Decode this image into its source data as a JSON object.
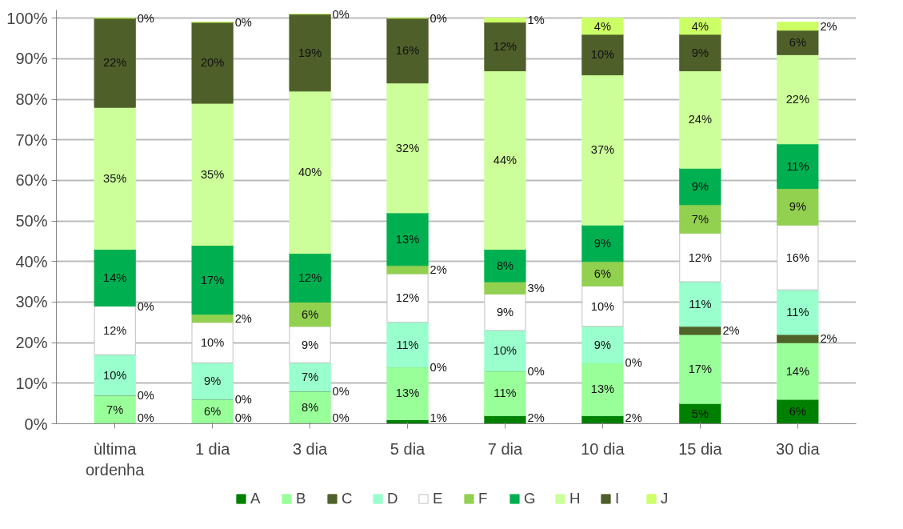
{
  "chart_data": {
    "type": "bar",
    "stacked": true,
    "categories": [
      "ùltima\nordenha",
      "1 dia",
      "3 dia",
      "5 dia",
      "7 dia",
      "10 dia",
      "15 dia",
      "30 dia"
    ],
    "series": [
      {
        "name": "A",
        "color": "#008000",
        "values": [
          0,
          0,
          0,
          1,
          2,
          2,
          5,
          6
        ],
        "value_labels": [
          "0%",
          "0%",
          "0%",
          "1%",
          "2%",
          "2%",
          "5%",
          "6%"
        ]
      },
      {
        "name": "B",
        "color": "#99ff99",
        "values": [
          7,
          6,
          8,
          13,
          11,
          13,
          17,
          14
        ],
        "value_labels": [
          "7%",
          "6%",
          "8%",
          "13%",
          "11%",
          "13%",
          "17%",
          "14%"
        ]
      },
      {
        "name": "C",
        "color": "#4f6228",
        "values": [
          0,
          0,
          0,
          0,
          0,
          0,
          2,
          2
        ],
        "value_labels": [
          "0%",
          "0%",
          "0%",
          "0%",
          "0%",
          "0%",
          "2%",
          "2%"
        ]
      },
      {
        "name": "D",
        "color": "#99ffcc",
        "values": [
          10,
          9,
          7,
          11,
          10,
          9,
          11,
          11
        ],
        "value_labels": [
          "10%",
          "9%",
          "7%",
          "11%",
          "10%",
          "9%",
          "11%",
          "11%"
        ]
      },
      {
        "name": "E",
        "color": "#ffffff",
        "values": [
          12,
          10,
          9,
          12,
          9,
          10,
          12,
          16
        ],
        "value_labels": [
          "12%",
          "10%",
          "9%",
          "12%",
          "9%",
          "10%",
          "12%",
          "16%"
        ]
      },
      {
        "name": "F",
        "color": "#92d050",
        "values": [
          0,
          2,
          6,
          2,
          3,
          6,
          7,
          9
        ],
        "value_labels": [
          "0%",
          "2%",
          "6%",
          "2%",
          "3%",
          "6%",
          "7%",
          "9%"
        ]
      },
      {
        "name": "G",
        "color": "#00b050",
        "values": [
          14,
          17,
          12,
          13,
          8,
          9,
          9,
          11
        ],
        "value_labels": [
          "14%",
          "17%",
          "12%",
          "13%",
          "8%",
          "9%",
          "9%",
          "11%"
        ]
      },
      {
        "name": "H",
        "color": "#ccff99",
        "values": [
          35,
          35,
          40,
          32,
          44,
          37,
          24,
          22
        ],
        "value_labels": [
          "35%",
          "35%",
          "40%",
          "32%",
          "44%",
          "37%",
          "24%",
          "22%"
        ]
      },
      {
        "name": "I",
        "color": "#4e5f2a",
        "values": [
          22,
          20,
          19,
          16,
          12,
          10,
          9,
          6
        ],
        "value_labels": [
          "22%",
          "20%",
          "19%",
          "16%",
          "12%",
          "10%",
          "9%",
          "6%"
        ]
      },
      {
        "name": "J",
        "color": "#ccff66",
        "values": [
          0,
          0,
          0,
          0,
          1,
          4,
          4,
          2
        ],
        "value_labels": [
          "0%",
          "0%",
          "0%",
          "0%",
          "1%",
          "4%",
          "4%",
          "2%"
        ]
      }
    ],
    "ylim": [
      0,
      102
    ],
    "yticks": [
      {
        "value": 0,
        "label": "0%"
      },
      {
        "value": 10,
        "label": "10%"
      },
      {
        "value": 20,
        "label": "20%"
      },
      {
        "value": 30,
        "label": "30%"
      },
      {
        "value": 40,
        "label": "40%"
      },
      {
        "value": 50,
        "label": "50%"
      },
      {
        "value": 60,
        "label": "60%"
      },
      {
        "value": 70,
        "label": "70%"
      },
      {
        "value": 80,
        "label": "80%"
      },
      {
        "value": 90,
        "label": "90%"
      },
      {
        "value": 100,
        "label": "100%"
      }
    ],
    "grid": "y",
    "legend": "bottom"
  }
}
